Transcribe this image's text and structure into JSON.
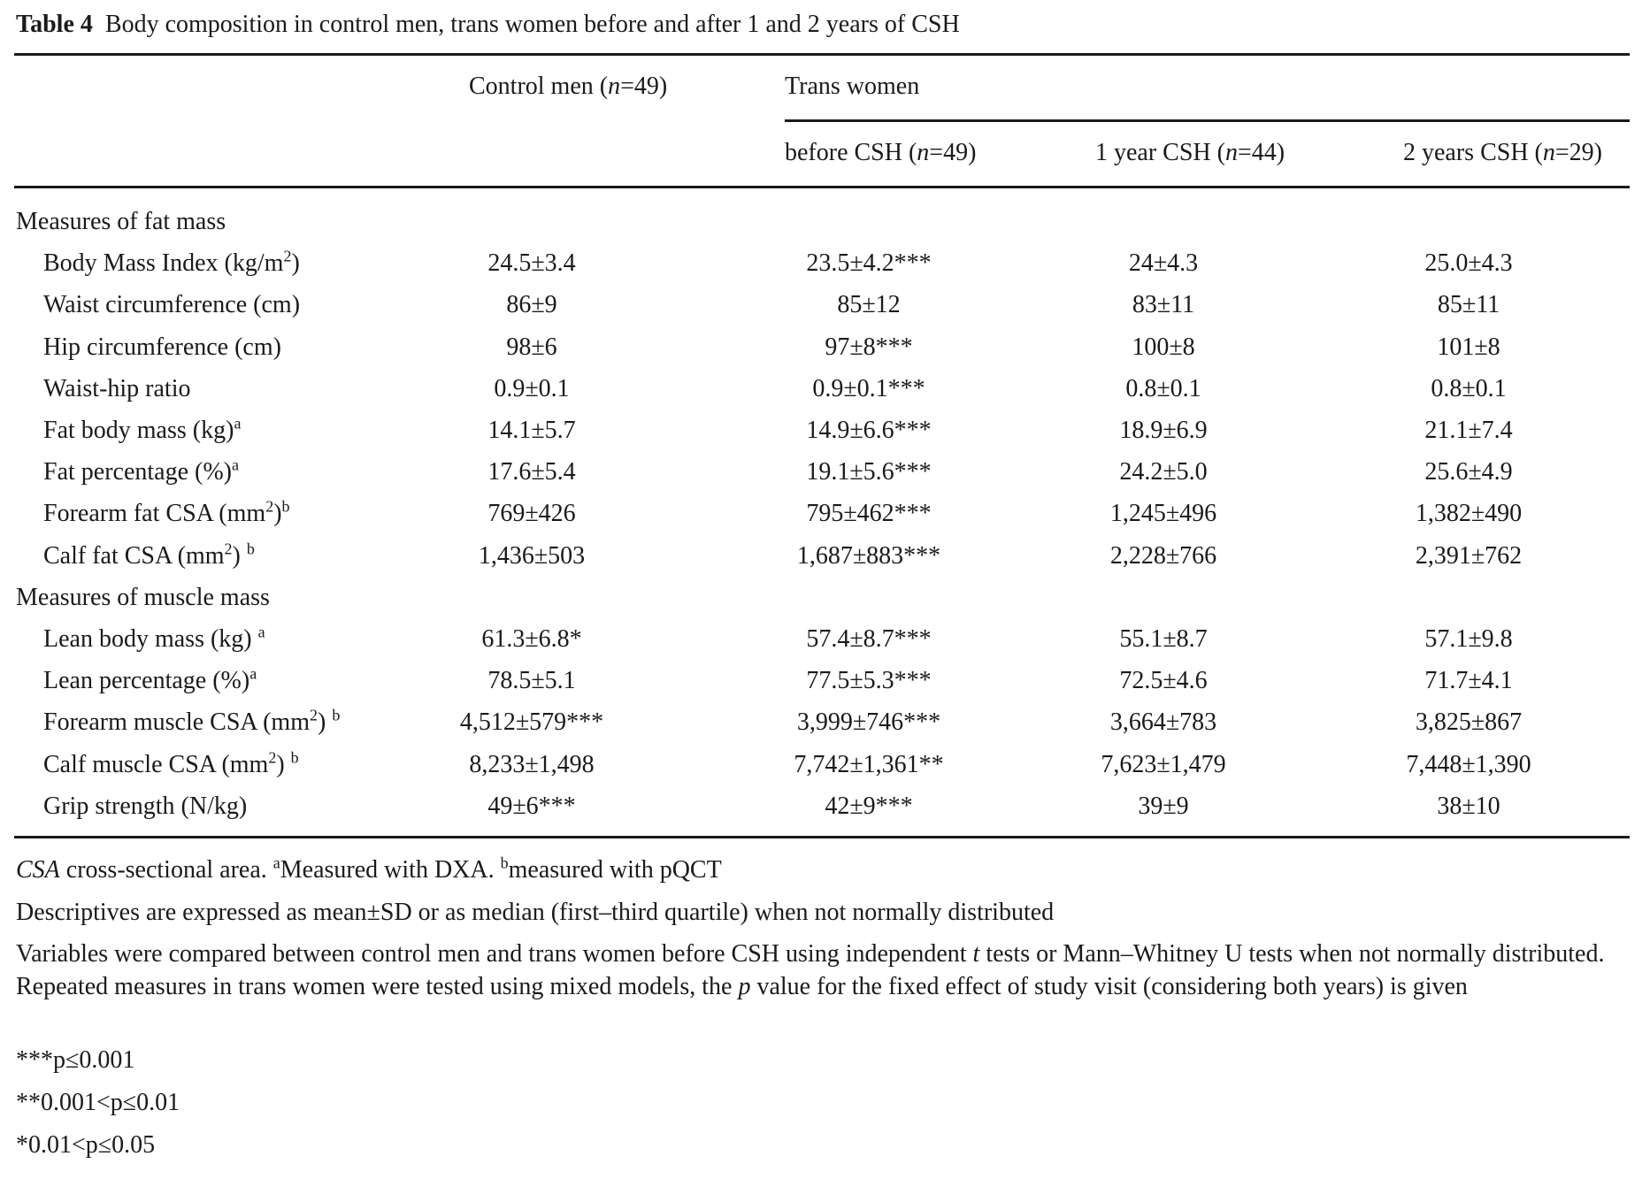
{
  "title": {
    "label": "Table 4",
    "text": "Body composition in control men, trans women before and after 1 and 2 years of CSH"
  },
  "header": {
    "control": {
      "pre": "Control men (",
      "n": "n",
      "post": "=49)"
    },
    "trans_women": "Trans women",
    "before": {
      "pre": "before CSH (",
      "n": "n",
      "post": "=49)"
    },
    "year1": {
      "pre": "1 year CSH (",
      "n": "n",
      "post": "=44)"
    },
    "year2": {
      "pre": "2 years CSH (",
      "n": "n",
      "post": "=29)"
    }
  },
  "sections": [
    {
      "title": "Measures of fat mass",
      "rows": [
        {
          "pre": "Body Mass Index (kg/m",
          "sup": "2",
          "post": ")",
          "note": "",
          "values": [
            "24.5±3.4",
            "23.5±4.2***",
            "24±4.3",
            "25.0±4.3"
          ]
        },
        {
          "pre": "Waist circumference (cm)",
          "sup": "",
          "post": "",
          "note": "",
          "values": [
            "86±9",
            "85±12",
            "83±11",
            "85±11"
          ]
        },
        {
          "pre": "Hip circumference (cm)",
          "sup": "",
          "post": "",
          "note": "",
          "values": [
            "98±6",
            "97±8***",
            "100±8",
            "101±8"
          ]
        },
        {
          "pre": "Waist-hip ratio",
          "sup": "",
          "post": "",
          "note": "",
          "values": [
            "0.9±0.1",
            "0.9±0.1***",
            "0.8±0.1",
            "0.8±0.1"
          ]
        },
        {
          "pre": "Fat body mass (kg)",
          "sup": "",
          "post": "",
          "note": "a",
          "values": [
            "14.1±5.7",
            "14.9±6.6***",
            "18.9±6.9",
            "21.1±7.4"
          ]
        },
        {
          "pre": "Fat percentage (%)",
          "sup": "",
          "post": "",
          "note": "a",
          "values": [
            "17.6±5.4",
            "19.1±5.6***",
            "24.2±5.0",
            "25.6±4.9"
          ]
        },
        {
          "pre": "Forearm fat CSA (mm",
          "sup": "2",
          "post": ")",
          "note": "b",
          "values": [
            "769±426",
            "795±462***",
            "1,245±496",
            "1,382±490"
          ]
        },
        {
          "pre": "Calf fat CSA (mm",
          "sup": "2",
          "post": ") ",
          "note": "b",
          "values": [
            "1,436±503",
            "1,687±883***",
            "2,228±766",
            "2,391±762"
          ]
        }
      ]
    },
    {
      "title": "Measures of muscle mass",
      "rows": [
        {
          "pre": "Lean body mass (kg) ",
          "sup": "",
          "post": "",
          "note": "a",
          "values": [
            "61.3±6.8*",
            "57.4±8.7***",
            "55.1±8.7",
            "57.1±9.8"
          ]
        },
        {
          "pre": "Lean percentage (%)",
          "sup": "",
          "post": "",
          "note": "a",
          "values": [
            "78.5±5.1",
            "77.5±5.3***",
            "72.5±4.6",
            "71.7±4.1"
          ]
        },
        {
          "pre": "Forearm muscle CSA (mm",
          "sup": "2",
          "post": ") ",
          "note": "b",
          "values": [
            "4,512±579***",
            "3,999±746***",
            "3,664±783",
            "3,825±867"
          ]
        },
        {
          "pre": "Calf muscle CSA (mm",
          "sup": "2",
          "post": ") ",
          "note": "b",
          "values": [
            "8,233±1,498",
            "7,742±1,361**",
            "7,623±1,479",
            "7,448±1,390"
          ]
        },
        {
          "pre": "Grip strength (N/kg)",
          "sup": "",
          "post": "",
          "note": "",
          "values": [
            "49±6***",
            "42±9***",
            "39±9",
            "38±10"
          ]
        }
      ]
    }
  ],
  "footnotes": {
    "abbr": {
      "term": "CSA",
      "text": " cross-sectional area. ",
      "a_mark": "a",
      "a_text": "Measured with DXA. ",
      "b_mark": "b",
      "b_text": "measured with pQCT"
    },
    "descriptives": "Descriptives are expressed as mean±SD or as median (first–third quartile) when not normally distributed",
    "methods": {
      "p1": "Variables were compared between control men and trans women before CSH using independent ",
      "t": "t",
      "p2": " tests or Mann–Whitney U tests when not normally distributed. Repeated measures in trans women were tested using mixed models, the ",
      "p": "p",
      "p3": " value for the fixed effect of study visit (considering both years) is given"
    },
    "sig3": "***p≤0.001",
    "sig2": "**0.001<p≤0.01",
    "sig1": "*0.01<p≤0.05"
  }
}
